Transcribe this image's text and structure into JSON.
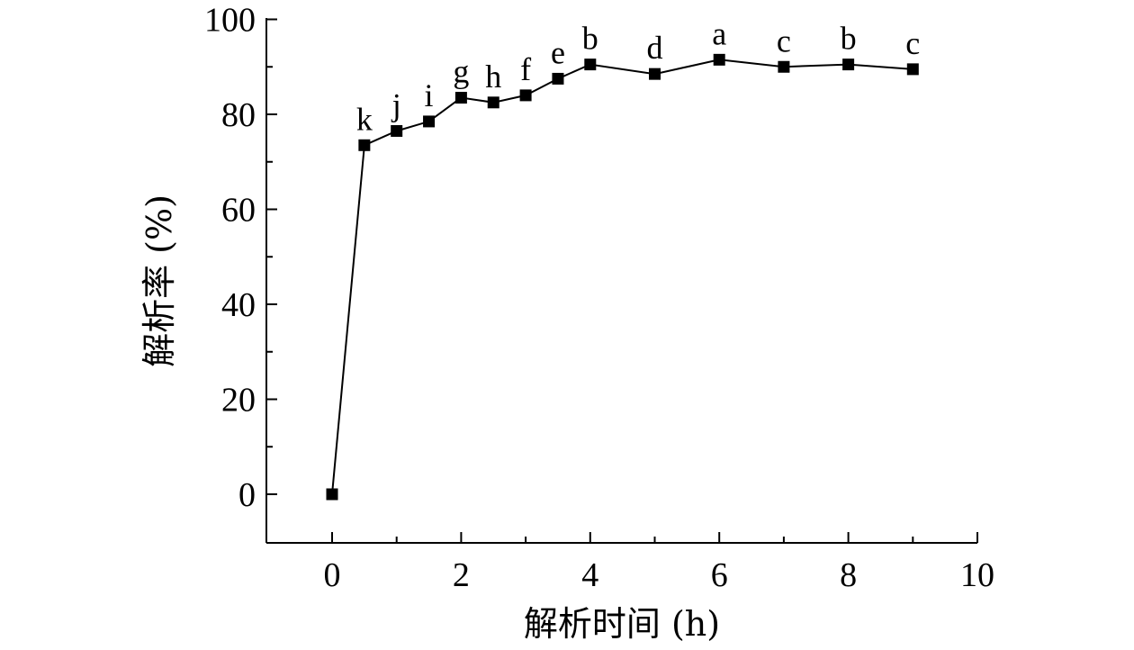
{
  "chart_data": {
    "type": "line",
    "xlabel": "解析时间 (h)",
    "ylabel": "解析率 (%)",
    "xlim": [
      -1,
      10
    ],
    "ylim": [
      -10,
      100
    ],
    "xticks": [
      "0",
      "2",
      "4",
      "6",
      "8",
      "10"
    ],
    "yticks": [
      "0",
      "20",
      "40",
      "60",
      "80",
      "100"
    ],
    "grid": false,
    "marker": "square",
    "series": [
      {
        "x": [
          0,
          0.5,
          1,
          1.5,
          2,
          2.5,
          3,
          3.5,
          4,
          5,
          6,
          7,
          8,
          9
        ],
        "values": [
          0,
          73.5,
          76.5,
          78.5,
          83.5,
          82.5,
          84,
          87.5,
          90.5,
          88.5,
          91.5,
          90,
          90.5,
          89.5
        ],
        "labels": [
          "",
          "k",
          "j",
          "i",
          "g",
          "h",
          "f",
          "e",
          "b",
          "d",
          "a",
          "c",
          "b",
          "c"
        ]
      }
    ]
  }
}
